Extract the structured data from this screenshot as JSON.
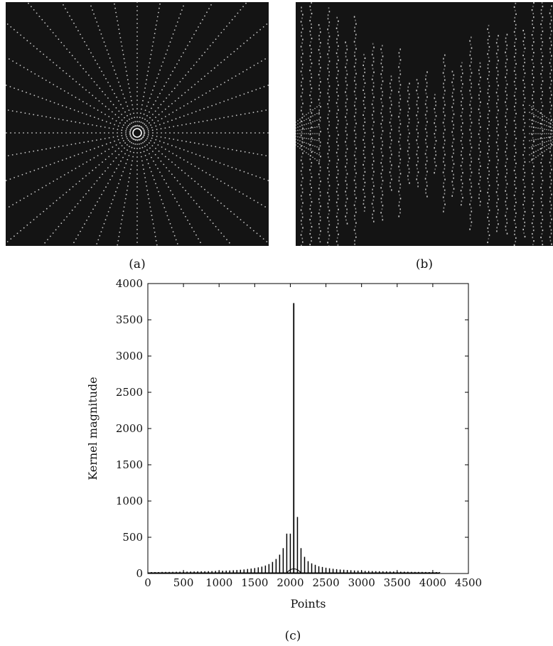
{
  "figure": {
    "panels": [
      {
        "id": "a",
        "caption": "(a)",
        "content": "radial-spoke-sampling-pattern",
        "background": "#141414",
        "spokes": 36
      },
      {
        "id": "b",
        "caption": "(b)",
        "content": "vertical-line-sampling-pattern",
        "background": "#141414"
      },
      {
        "id": "c",
        "caption": "(c)"
      }
    ]
  },
  "chart_data": {
    "type": "line",
    "title": "",
    "xlabel": "Points",
    "ylabel": "Kernel magnitude",
    "xlim": [
      0,
      4500
    ],
    "ylim": [
      0,
      4000
    ],
    "xticks": [
      0,
      500,
      1000,
      1500,
      2000,
      2500,
      3000,
      3500,
      4000,
      4500
    ],
    "yticks": [
      0,
      500,
      1000,
      1500,
      2000,
      2500,
      3000,
      3500,
      4000
    ],
    "grid": false,
    "legend": "none",
    "series": [
      {
        "color": "#000000",
        "spikes": {
          "x": [
            50,
            100,
            150,
            200,
            250,
            300,
            350,
            400,
            450,
            500,
            550,
            600,
            650,
            700,
            750,
            800,
            850,
            900,
            950,
            1000,
            1050,
            1100,
            1150,
            1200,
            1250,
            1300,
            1350,
            1400,
            1450,
            1500,
            1550,
            1600,
            1650,
            1700,
            1750,
            1800,
            1850,
            1900,
            1950,
            2000,
            2048,
            2100,
            2150,
            2200,
            2250,
            2300,
            2350,
            2400,
            2450,
            2500,
            2550,
            2600,
            2650,
            2700,
            2750,
            2800,
            2850,
            2900,
            2950,
            3000,
            3050,
            3100,
            3150,
            3200,
            3250,
            3300,
            3350,
            3400,
            3450,
            3500,
            3550,
            3600,
            3650,
            3700,
            3750,
            3800,
            3850,
            3900,
            3950,
            4000,
            4050,
            4096
          ],
          "y": [
            20,
            20,
            20,
            22,
            22,
            22,
            23,
            24,
            25,
            25,
            26,
            27,
            28,
            29,
            30,
            31,
            32,
            33,
            35,
            36,
            38,
            40,
            42,
            45,
            48,
            52,
            56,
            62,
            68,
            75,
            85,
            95,
            110,
            130,
            160,
            200,
            260,
            350,
            550,
            550,
            3730,
            780,
            350,
            230,
            170,
            140,
            120,
            100,
            90,
            80,
            72,
            65,
            60,
            55,
            52,
            48,
            45,
            42,
            40,
            38,
            36,
            35,
            33,
            32,
            31,
            30,
            29,
            28,
            27,
            26,
            25,
            25,
            24,
            23,
            22,
            22,
            22,
            21,
            20,
            20,
            20,
            20
          ]
        },
        "baseline": 10
      }
    ]
  }
}
